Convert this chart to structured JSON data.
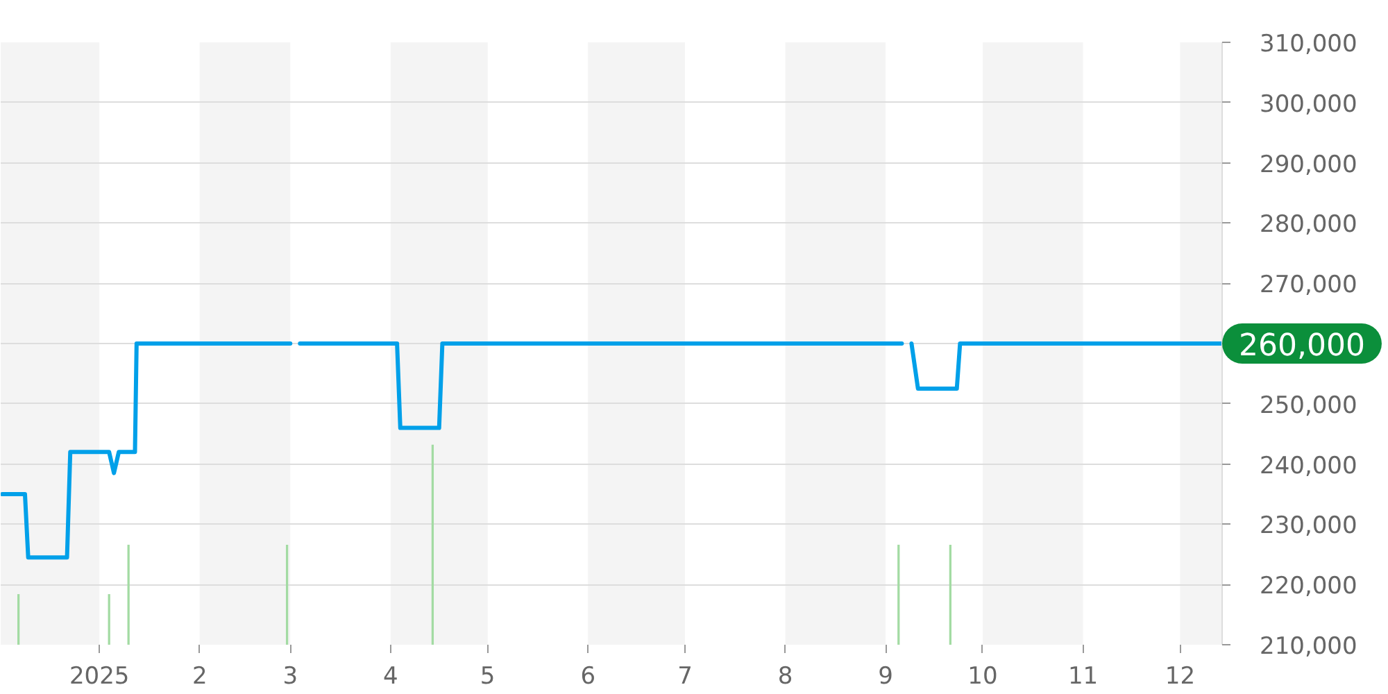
{
  "chart_data": {
    "type": "line",
    "xlim": [
      "2024-12-01T12:00",
      "2025-12-14"
    ],
    "xticks": [
      {
        "value": "2025-01-01",
        "label": "2025"
      },
      {
        "value": "2025-02-01",
        "label": "2"
      },
      {
        "value": "2025-03-01",
        "label": "3"
      },
      {
        "value": "2025-04-01",
        "label": "4"
      },
      {
        "value": "2025-05-01",
        "label": "5"
      },
      {
        "value": "2025-06-01",
        "label": "6"
      },
      {
        "value": "2025-07-01",
        "label": "7"
      },
      {
        "value": "2025-08-01",
        "label": "8"
      },
      {
        "value": "2025-09-01",
        "label": "9"
      },
      {
        "value": "2025-10-01",
        "label": "10"
      },
      {
        "value": "2025-11-01",
        "label": "11"
      },
      {
        "value": "2025-12-01",
        "label": "12"
      }
    ],
    "ylim": [
      210000,
      310000
    ],
    "yticks": [
      {
        "value": 210000,
        "label": "210,000"
      },
      {
        "value": 220000,
        "label": "220,000"
      },
      {
        "value": 230000,
        "label": "230,000"
      },
      {
        "value": 240000,
        "label": "240,000"
      },
      {
        "value": 250000,
        "label": "250,000"
      },
      {
        "value": 260000,
        "label": null
      },
      {
        "value": 270000,
        "label": "270,000"
      },
      {
        "value": 280000,
        "label": "280,000"
      },
      {
        "value": 290000,
        "label": "290,000"
      },
      {
        "value": 300000,
        "label": "300,000"
      },
      {
        "value": 310000,
        "label": "310,000"
      }
    ],
    "grid": "y",
    "bands": [
      {
        "axis": "x",
        "from": "2024-12-01T12:00",
        "to": "2025-01-01",
        "color": "#f4f4f4"
      },
      {
        "axis": "x",
        "from": "2025-02-01",
        "to": "2025-03-01",
        "color": "#f4f4f4"
      },
      {
        "axis": "x",
        "from": "2025-04-01",
        "to": "2025-05-01",
        "color": "#f4f4f4"
      },
      {
        "axis": "x",
        "from": "2025-06-01",
        "to": "2025-07-01",
        "color": "#f4f4f4"
      },
      {
        "axis": "x",
        "from": "2025-08-01",
        "to": "2025-09-01",
        "color": "#f4f4f4"
      },
      {
        "axis": "x",
        "from": "2025-10-01",
        "to": "2025-11-01",
        "color": "#f4f4f4"
      },
      {
        "axis": "x",
        "from": "2025-12-01",
        "to": "2025-12-14",
        "color": "#f4f4f4"
      }
    ],
    "annotations": [
      {
        "text": "260,000",
        "x": "2025-12-14",
        "y": 260000
      }
    ],
    "series": [
      {
        "type": "bar",
        "color": "#a3dba3",
        "x": [
          "2024-12-07",
          "2025-01-04",
          "2025-01-10",
          "2025-02-28",
          "2025-04-14",
          "2025-09-05",
          "2025-09-21"
        ],
        "values": [
          218400,
          218400,
          226600,
          226600,
          243200,
          226600,
          226600
        ]
      },
      {
        "color": "#00a0e9",
        "x": [
          "2024-12-02",
          "2024-12-09",
          "2024-12-10",
          "2024-12-22",
          "2024-12-23",
          "2025-01-04",
          "2025-01-05T12:00",
          "2025-01-07",
          "2025-01-12",
          "2025-01-12T12:00",
          "2025-03-01",
          "2025-03-02",
          "2025-03-04",
          "2025-04-03",
          "2025-04-04",
          "2025-04-16",
          "2025-04-17",
          "2025-09-06",
          "2025-09-07",
          "2025-09-09",
          "2025-09-11",
          "2025-09-23",
          "2025-09-24",
          "2025-12-14"
        ],
        "values": [
          235000,
          235000,
          224500,
          224500,
          242000,
          242000,
          238500,
          242000,
          242000,
          260000,
          260000,
          null,
          260000,
          260000,
          246000,
          246000,
          260000,
          260000,
          null,
          260000,
          252500,
          252500,
          260000,
          260000
        ]
      }
    ]
  }
}
